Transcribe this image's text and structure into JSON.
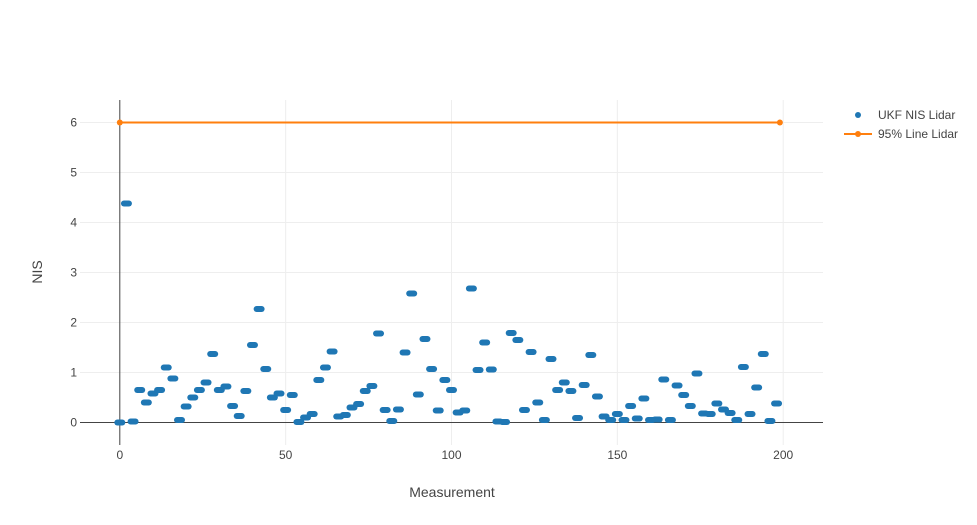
{
  "chart_data": {
    "type": "scatter",
    "title": "",
    "xlabel": "Measurement",
    "ylabel": "NIS",
    "xlim": [
      -12,
      212
    ],
    "ylim": [
      -0.45,
      6.45
    ],
    "x_ticks": [
      0,
      50,
      100,
      150,
      200
    ],
    "y_ticks": [
      0,
      1,
      2,
      3,
      4,
      5,
      6
    ],
    "grid": true,
    "legend_position": "top-right",
    "series": [
      {
        "name": "UKF NIS Lidar",
        "mode": "markers",
        "color": "#1f77b4",
        "x": [
          0,
          2,
          4,
          6,
          8,
          10,
          12,
          14,
          16,
          18,
          20,
          22,
          24,
          26,
          28,
          30,
          32,
          34,
          36,
          38,
          40,
          42,
          44,
          46,
          48,
          50,
          52,
          54,
          56,
          58,
          60,
          62,
          64,
          66,
          68,
          70,
          72,
          74,
          76,
          78,
          80,
          82,
          84,
          86,
          88,
          90,
          92,
          94,
          96,
          98,
          100,
          102,
          104,
          106,
          108,
          110,
          112,
          114,
          116,
          118,
          120,
          122,
          124,
          126,
          128,
          130,
          132,
          134,
          136,
          138,
          140,
          142,
          144,
          146,
          148,
          150,
          152,
          154,
          156,
          158,
          160,
          162,
          164,
          166,
          168,
          170,
          172,
          174,
          176,
          178,
          180,
          182,
          184,
          186,
          188,
          190,
          192,
          194,
          196,
          198
        ],
        "y": [
          0.0,
          4.38,
          0.02,
          0.65,
          0.4,
          0.58,
          0.65,
          1.1,
          0.88,
          0.05,
          0.32,
          0.5,
          0.65,
          0.8,
          1.37,
          0.65,
          0.72,
          0.33,
          0.13,
          0.63,
          1.55,
          2.27,
          1.07,
          0.5,
          0.58,
          0.25,
          0.55,
          0.01,
          0.1,
          0.17,
          0.85,
          1.1,
          1.42,
          0.12,
          0.15,
          0.3,
          0.37,
          0.63,
          0.73,
          1.78,
          0.25,
          0.03,
          0.26,
          1.4,
          2.58,
          0.56,
          1.67,
          1.07,
          0.24,
          0.85,
          0.65,
          0.2,
          0.24,
          2.68,
          1.05,
          1.6,
          1.06,
          0.02,
          0.01,
          1.79,
          1.65,
          0.25,
          1.41,
          0.4,
          0.05,
          1.27,
          0.65,
          0.8,
          0.63,
          0.09,
          0.75,
          1.35,
          0.52,
          0.12,
          0.05,
          0.17,
          0.05,
          0.33,
          0.08,
          0.48,
          0.05,
          0.06,
          0.86,
          0.05,
          0.74,
          0.55,
          0.33,
          0.98,
          0.18,
          0.17,
          0.38,
          0.26,
          0.19,
          0.05,
          1.11,
          0.17,
          0.7,
          1.37,
          0.03,
          0.38
        ]
      },
      {
        "name": "95% Line Lidar",
        "mode": "lines+markers",
        "color": "#ff7f0e",
        "x": [
          0,
          199
        ],
        "y": [
          6,
          6
        ]
      }
    ]
  }
}
